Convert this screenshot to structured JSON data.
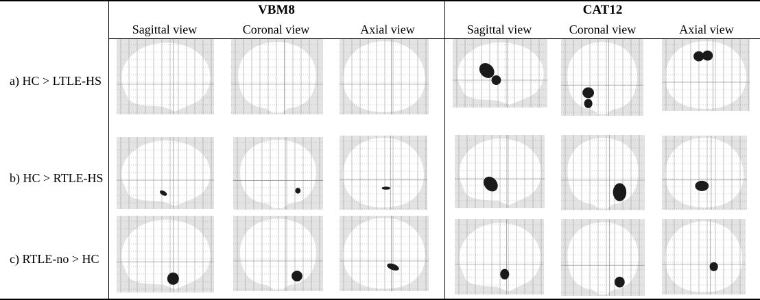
{
  "groups": [
    {
      "title": "VBM8",
      "views": [
        "Sagittal view",
        "Coronal view",
        "Axial view"
      ]
    },
    {
      "title": "CAT12",
      "views": [
        "Sagittal view",
        "Coronal view",
        "Axial view"
      ]
    }
  ],
  "rows": [
    {
      "label": "a) HC > LTLE-HS"
    },
    {
      "label": "b) HC > RTLE-HS"
    },
    {
      "label": "c) RTLE-no > HC"
    }
  ],
  "figure_content": "glass-brain-maximum-intensity-projections",
  "colors": {
    "background_gray": "#e3e3e3",
    "brain_fill": "#ffffff",
    "grid": "#9a9a9a",
    "blob": "#1a1a1a"
  }
}
